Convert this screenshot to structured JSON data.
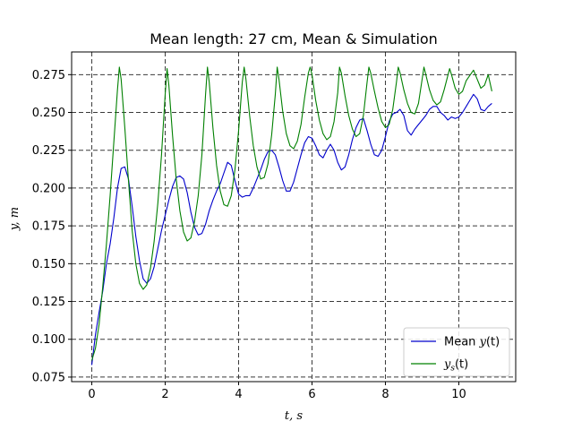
{
  "chart_data": {
    "type": "line",
    "title": "Mean length: 27 cm, Mean & Simulation",
    "xlabel": "t, s",
    "ylabel": "y, m",
    "xlim": [
      -0.55,
      11.55
    ],
    "ylim": [
      0.072,
      0.29
    ],
    "x_ticks": [
      0,
      2,
      4,
      6,
      8,
      10
    ],
    "x_tick_labels": [
      "0",
      "2",
      "4",
      "6",
      "8",
      "10"
    ],
    "y_ticks": [
      0.075,
      0.1,
      0.125,
      0.15,
      0.175,
      0.2,
      0.225,
      0.25,
      0.275
    ],
    "y_tick_labels": [
      "0.075",
      "0.100",
      "0.125",
      "0.150",
      "0.175",
      "0.200",
      "0.225",
      "0.250",
      "0.275"
    ],
    "grid": true,
    "grid_style": "dashed",
    "legend_position": "lower-right",
    "series": [
      {
        "name": "Mean y(t)",
        "legend_main": "Mean ",
        "legend_var": "y",
        "legend_sub": "",
        "legend_tail": "(t)",
        "color": "#0000cc",
        "x": [
          0,
          0.1,
          0.2,
          0.3,
          0.4,
          0.5,
          0.6,
          0.7,
          0.8,
          0.9,
          1.0,
          1.1,
          1.2,
          1.3,
          1.4,
          1.5,
          1.6,
          1.7,
          1.8,
          1.9,
          2.0,
          2.1,
          2.2,
          2.3,
          2.4,
          2.5,
          2.6,
          2.7,
          2.8,
          2.9,
          3.0,
          3.1,
          3.2,
          3.3,
          3.4,
          3.5,
          3.6,
          3.7,
          3.8,
          3.9,
          4.0,
          4.1,
          4.2,
          4.3,
          4.4,
          4.5,
          4.6,
          4.7,
          4.8,
          4.9,
          5.0,
          5.1,
          5.2,
          5.3,
          5.4,
          5.5,
          5.6,
          5.7,
          5.8,
          5.9,
          6.0,
          6.1,
          6.2,
          6.3,
          6.4,
          6.5,
          6.6,
          6.7,
          6.8,
          6.9,
          7.0,
          7.1,
          7.2,
          7.3,
          7.4,
          7.5,
          7.6,
          7.7,
          7.8,
          7.9,
          8.0,
          8.1,
          8.2,
          8.3,
          8.4,
          8.5,
          8.6,
          8.7,
          8.8,
          8.9,
          9.0,
          9.1,
          9.2,
          9.3,
          9.4,
          9.5,
          9.6,
          9.7,
          9.8,
          9.9,
          10.0,
          10.1,
          10.2,
          10.3,
          10.4,
          10.5,
          10.6,
          10.7,
          10.8,
          10.9
        ],
        "values": [
          0.083,
          0.103,
          0.118,
          0.132,
          0.15,
          0.163,
          0.18,
          0.2,
          0.213,
          0.214,
          0.206,
          0.188,
          0.168,
          0.152,
          0.14,
          0.137,
          0.14,
          0.148,
          0.16,
          0.172,
          0.182,
          0.192,
          0.201,
          0.207,
          0.208,
          0.206,
          0.197,
          0.184,
          0.174,
          0.169,
          0.17,
          0.176,
          0.185,
          0.192,
          0.198,
          0.203,
          0.21,
          0.217,
          0.215,
          0.205,
          0.196,
          0.194,
          0.195,
          0.195,
          0.2,
          0.206,
          0.212,
          0.219,
          0.224,
          0.225,
          0.222,
          0.214,
          0.205,
          0.198,
          0.198,
          0.204,
          0.213,
          0.222,
          0.23,
          0.234,
          0.233,
          0.228,
          0.222,
          0.22,
          0.225,
          0.229,
          0.225,
          0.217,
          0.212,
          0.214,
          0.222,
          0.232,
          0.24,
          0.245,
          0.246,
          0.238,
          0.229,
          0.222,
          0.221,
          0.225,
          0.234,
          0.244,
          0.249,
          0.25,
          0.252,
          0.248,
          0.238,
          0.235,
          0.239,
          0.242,
          0.245,
          0.248,
          0.252,
          0.254,
          0.254,
          0.25,
          0.248,
          0.245,
          0.247,
          0.246,
          0.247,
          0.25,
          0.254,
          0.258,
          0.262,
          0.259,
          0.252,
          0.251,
          0.254,
          0.256
        ]
      },
      {
        "name": "y_s(t)",
        "legend_main": "",
        "legend_var": "y",
        "legend_sub": "s",
        "legend_tail": "(t)",
        "color": "#008000",
        "x": [
          0,
          0.1,
          0.2,
          0.3,
          0.4,
          0.5,
          0.6,
          0.7,
          0.75,
          0.8,
          0.9,
          1.0,
          1.1,
          1.2,
          1.3,
          1.4,
          1.5,
          1.6,
          1.7,
          1.8,
          1.9,
          2.0,
          2.05,
          2.1,
          2.2,
          2.3,
          2.4,
          2.5,
          2.6,
          2.7,
          2.8,
          2.9,
          3.0,
          3.1,
          3.15,
          3.2,
          3.3,
          3.4,
          3.5,
          3.6,
          3.7,
          3.8,
          3.9,
          4.0,
          4.1,
          4.15,
          4.2,
          4.3,
          4.4,
          4.5,
          4.6,
          4.7,
          4.8,
          4.9,
          5.0,
          5.05,
          5.1,
          5.2,
          5.3,
          5.4,
          5.5,
          5.6,
          5.7,
          5.8,
          5.9,
          5.95,
          6.0,
          6.1,
          6.2,
          6.3,
          6.4,
          6.5,
          6.6,
          6.7,
          6.75,
          6.8,
          6.9,
          7.0,
          7.1,
          7.2,
          7.3,
          7.4,
          7.5,
          7.55,
          7.6,
          7.7,
          7.8,
          7.9,
          8.0,
          8.1,
          8.2,
          8.3,
          8.35,
          8.4,
          8.5,
          8.6,
          8.7,
          8.8,
          8.9,
          9.0,
          9.05,
          9.1,
          9.2,
          9.3,
          9.4,
          9.5,
          9.6,
          9.75,
          9.8,
          9.9,
          10.0,
          10.1,
          10.2,
          10.4,
          10.5,
          10.6,
          10.7,
          10.8,
          10.9
        ],
        "values": [
          0.086,
          0.094,
          0.11,
          0.135,
          0.163,
          0.195,
          0.23,
          0.265,
          0.28,
          0.272,
          0.24,
          0.205,
          0.172,
          0.15,
          0.137,
          0.133,
          0.136,
          0.147,
          0.165,
          0.19,
          0.222,
          0.262,
          0.279,
          0.268,
          0.235,
          0.206,
          0.185,
          0.171,
          0.165,
          0.167,
          0.178,
          0.195,
          0.222,
          0.262,
          0.28,
          0.27,
          0.24,
          0.215,
          0.198,
          0.189,
          0.188,
          0.195,
          0.212,
          0.238,
          0.27,
          0.28,
          0.272,
          0.248,
          0.228,
          0.214,
          0.206,
          0.207,
          0.216,
          0.235,
          0.262,
          0.28,
          0.272,
          0.251,
          0.236,
          0.228,
          0.226,
          0.231,
          0.242,
          0.26,
          0.276,
          0.28,
          0.275,
          0.258,
          0.245,
          0.236,
          0.232,
          0.234,
          0.244,
          0.263,
          0.28,
          0.276,
          0.261,
          0.248,
          0.239,
          0.234,
          0.236,
          0.248,
          0.27,
          0.28,
          0.276,
          0.264,
          0.253,
          0.244,
          0.24,
          0.242,
          0.252,
          0.27,
          0.28,
          0.276,
          0.265,
          0.256,
          0.25,
          0.249,
          0.256,
          0.272,
          0.28,
          0.275,
          0.265,
          0.258,
          0.255,
          0.257,
          0.265,
          0.279,
          0.275,
          0.266,
          0.262,
          0.264,
          0.271,
          0.278,
          0.272,
          0.266,
          0.268,
          0.275,
          0.264
        ]
      }
    ]
  }
}
